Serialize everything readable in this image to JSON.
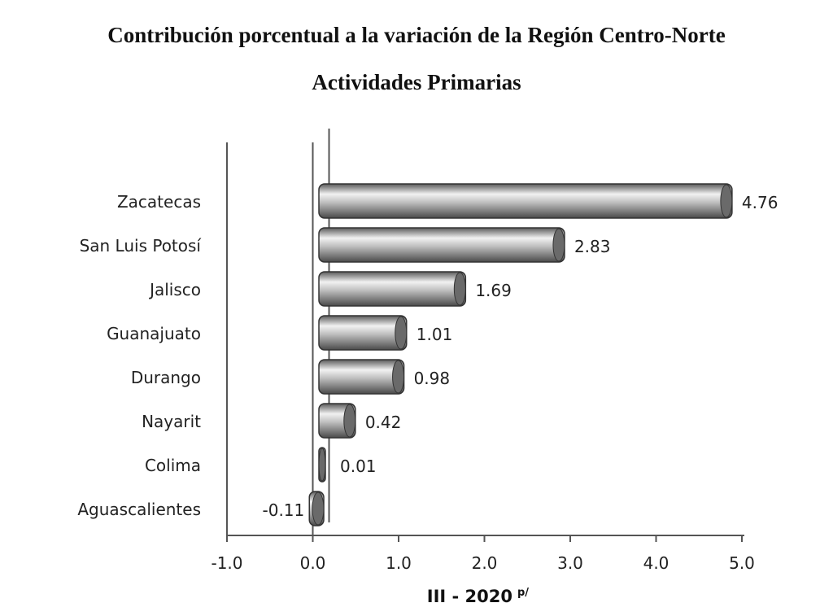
{
  "chart_data": {
    "type": "bar",
    "orientation": "horizontal",
    "title": "Contribución porcentual a la variación de la Región Centro-Norte",
    "subtitle": "Actividades Primarias",
    "xlabel": "III - 2020",
    "xlabel_suffix": "p/",
    "ylabel": "",
    "categories": [
      "Zacatecas",
      "San Luis Potosí",
      "Jalisco",
      "Guanajuato",
      "Durango",
      "Nayarit",
      "Colima",
      "Aguascalientes"
    ],
    "values": [
      4.76,
      2.83,
      1.69,
      1.01,
      0.98,
      0.42,
      0.01,
      -0.11
    ],
    "data_labels": [
      "4.76",
      "2.83",
      "1.69",
      "1.01",
      "0.98",
      "0.42",
      "0.01",
      "-0.11"
    ],
    "xlim": [
      -1.0,
      5.0
    ],
    "xticks": [
      "-1.0",
      "0.0",
      "1.0",
      "2.0",
      "3.0",
      "4.0",
      "5.0"
    ],
    "grid": false,
    "legend": "none",
    "bar_color": "#9a9a9a"
  }
}
